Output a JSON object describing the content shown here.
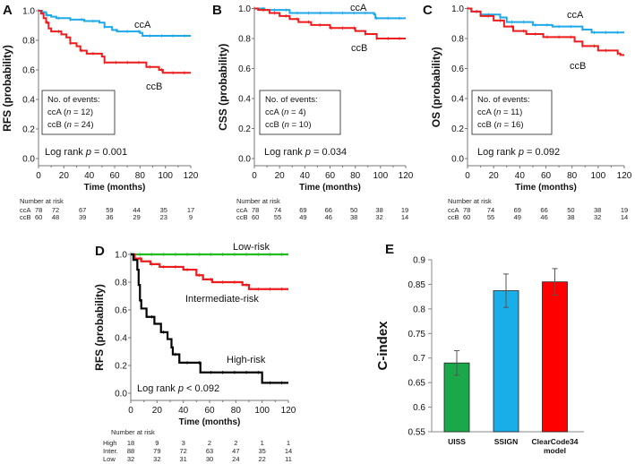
{
  "colors": {
    "ccA": "#1fa9ea",
    "ccB": "#ee1c1c",
    "low": "#22bb22",
    "inter": "#ee1c1c",
    "high": "#000000",
    "bar_uiss": "#1aa84a",
    "bar_ssign": "#19aee8",
    "bar_clearcode": "#ff0000",
    "errorbar": "#555555"
  },
  "chart_data": [
    {
      "id": "A",
      "type": "line",
      "step": true,
      "panel_label": "A",
      "xlabel": "Time (months)",
      "ylabel": "RFS (probability)",
      "xlim": [
        0,
        120
      ],
      "ylim": [
        0,
        1
      ],
      "xticks": [
        "0",
        "20",
        "40",
        "60",
        "80",
        "100",
        "120"
      ],
      "yticks": [
        "0.0",
        "0.2",
        "0.4",
        "0.6",
        "0.8",
        "1.0"
      ],
      "series": [
        {
          "name": "ccA",
          "color": "#1fa9ea",
          "points": [
            [
              0,
              1
            ],
            [
              3,
              0.99
            ],
            [
              6,
              0.97
            ],
            [
              10,
              0.96
            ],
            [
              14,
              0.95
            ],
            [
              25,
              0.94
            ],
            [
              36,
              0.93
            ],
            [
              48,
              0.92
            ],
            [
              52,
              0.89
            ],
            [
              58,
              0.87
            ],
            [
              62,
              0.86
            ],
            [
              80,
              0.85
            ],
            [
              82,
              0.83
            ],
            [
              120,
              0.83
            ]
          ]
        },
        {
          "name": "ccB",
          "color": "#ee1c1c",
          "points": [
            [
              0,
              1
            ],
            [
              2,
              0.98
            ],
            [
              4,
              0.95
            ],
            [
              6,
              0.92
            ],
            [
              8,
              0.88
            ],
            [
              10,
              0.86
            ],
            [
              18,
              0.84
            ],
            [
              22,
              0.82
            ],
            [
              25,
              0.78
            ],
            [
              30,
              0.76
            ],
            [
              33,
              0.73
            ],
            [
              38,
              0.71
            ],
            [
              50,
              0.69
            ],
            [
              52,
              0.65
            ],
            [
              80,
              0.65
            ],
            [
              85,
              0.62
            ],
            [
              95,
              0.6
            ],
            [
              98,
              0.58
            ],
            [
              120,
              0.58
            ]
          ]
        }
      ],
      "legend_title": "No. of events:",
      "legend_lines": [
        {
          "group": "ccA (",
          "n": "n",
          "rest": " = 12)"
        },
        {
          "group": "ccB (",
          "n": "n",
          "rest": " = 24)"
        }
      ],
      "logrank": {
        "prefix": "Log rank ",
        "p": "p",
        "rest": " = 0.001"
      },
      "risk_title": "Number at risk",
      "risk_rows": [
        {
          "label": "ccA",
          "values": [
            "78",
            "72",
            "67",
            "59",
            "44",
            "35",
            "17"
          ]
        },
        {
          "label": "ccB",
          "values": [
            "60",
            "48",
            "39",
            "36",
            "29",
            "23",
            "9"
          ]
        }
      ]
    },
    {
      "id": "B",
      "type": "line",
      "step": true,
      "panel_label": "B",
      "xlabel": "Time (months)",
      "ylabel": "CSS (probability)",
      "xlim": [
        0,
        120
      ],
      "ylim": [
        0,
        1
      ],
      "xticks": [
        "0",
        "20",
        "40",
        "60",
        "80",
        "100",
        "120"
      ],
      "yticks": [
        "0.0",
        "0.2",
        "0.4",
        "0.6",
        "0.8",
        "1.0"
      ],
      "series": [
        {
          "name": "ccA",
          "color": "#1fa9ea",
          "points": [
            [
              0,
              1
            ],
            [
              8,
              0.99
            ],
            [
              28,
              0.97
            ],
            [
              95,
              0.96
            ],
            [
              96,
              0.935
            ],
            [
              120,
              0.935
            ]
          ]
        },
        {
          "name": "ccB",
          "color": "#ee1c1c",
          "points": [
            [
              0,
              1
            ],
            [
              3,
              0.99
            ],
            [
              12,
              0.97
            ],
            [
              20,
              0.95
            ],
            [
              28,
              0.93
            ],
            [
              35,
              0.91
            ],
            [
              45,
              0.89
            ],
            [
              60,
              0.87
            ],
            [
              80,
              0.85
            ],
            [
              88,
              0.83
            ],
            [
              97,
              0.8
            ],
            [
              120,
              0.8
            ]
          ]
        }
      ],
      "legend_title": "No. of events:",
      "legend_lines": [
        {
          "group": "ccA (",
          "n": "n",
          "rest": " = 4)"
        },
        {
          "group": "ccB (",
          "n": "n",
          "rest": " = 10)"
        }
      ],
      "logrank": {
        "prefix": "Log rank ",
        "p": "p",
        "rest": " = 0.034"
      },
      "risk_title": "Number at risk",
      "risk_rows": [
        {
          "label": "ccA",
          "values": [
            "78",
            "74",
            "69",
            "66",
            "50",
            "38",
            "19"
          ]
        },
        {
          "label": "ccB",
          "values": [
            "60",
            "55",
            "49",
            "46",
            "38",
            "32",
            "14"
          ]
        }
      ]
    },
    {
      "id": "C",
      "type": "line",
      "step": true,
      "panel_label": "C",
      "xlabel": "Time (months)",
      "ylabel": "OS (probability)",
      "xlim": [
        0,
        120
      ],
      "ylim": [
        0,
        1
      ],
      "xticks": [
        "0",
        "20",
        "40",
        "60",
        "80",
        "100",
        "120"
      ],
      "yticks": [
        "0.0",
        "0.2",
        "0.4",
        "0.6",
        "0.8",
        "1.0"
      ],
      "series": [
        {
          "name": "ccA",
          "color": "#1fa9ea",
          "points": [
            [
              0,
              1
            ],
            [
              3,
              0.98
            ],
            [
              10,
              0.96
            ],
            [
              25,
              0.94
            ],
            [
              30,
              0.91
            ],
            [
              50,
              0.89
            ],
            [
              65,
              0.88
            ],
            [
              88,
              0.86
            ],
            [
              95,
              0.84
            ],
            [
              120,
              0.84
            ]
          ]
        },
        {
          "name": "ccB",
          "color": "#ee1c1c",
          "points": [
            [
              0,
              1
            ],
            [
              3,
              0.98
            ],
            [
              10,
              0.95
            ],
            [
              20,
              0.92
            ],
            [
              28,
              0.88
            ],
            [
              35,
              0.85
            ],
            [
              45,
              0.83
            ],
            [
              58,
              0.81
            ],
            [
              82,
              0.78
            ],
            [
              88,
              0.75
            ],
            [
              100,
              0.72
            ],
            [
              115,
              0.7
            ],
            [
              117,
              0.69
            ],
            [
              120,
              0.69
            ]
          ]
        }
      ],
      "legend_title": "No. of events:",
      "legend_lines": [
        {
          "group": "ccA (",
          "n": "n",
          "rest": " = 11)"
        },
        {
          "group": "ccB (",
          "n": "n",
          "rest": " = 16)"
        }
      ],
      "logrank": {
        "prefix": "Log rank ",
        "p": "p",
        "rest": " = 0.092"
      },
      "risk_title": "Number at risk",
      "risk_rows": [
        {
          "label": "ccA",
          "values": [
            "78",
            "74",
            "69",
            "66",
            "50",
            "38",
            "19"
          ]
        },
        {
          "label": "ccB",
          "values": [
            "60",
            "55",
            "49",
            "46",
            "38",
            "32",
            "14"
          ]
        }
      ]
    },
    {
      "id": "D",
      "type": "line",
      "step": true,
      "panel_label": "D",
      "xlabel": "Time (months)",
      "ylabel": "RFS (probability)",
      "xlim": [
        0,
        120
      ],
      "ylim": [
        0,
        1
      ],
      "xticks": [
        "0",
        "20",
        "40",
        "60",
        "80",
        "100",
        "120"
      ],
      "yticks": [
        "0.0",
        "0.2",
        "0.4",
        "0.6",
        "0.8",
        "1.0"
      ],
      "series": [
        {
          "name": "Low-risk",
          "color": "#22bb22",
          "points": [
            [
              0,
              1
            ],
            [
              120,
              1
            ]
          ]
        },
        {
          "name": "Intermediate-risk",
          "color": "#ee1c1c",
          "points": [
            [
              0,
              1
            ],
            [
              3,
              0.97
            ],
            [
              8,
              0.95
            ],
            [
              15,
              0.93
            ],
            [
              22,
              0.91
            ],
            [
              40,
              0.89
            ],
            [
              50,
              0.85
            ],
            [
              55,
              0.82
            ],
            [
              62,
              0.8
            ],
            [
              85,
              0.78
            ],
            [
              90,
              0.75
            ],
            [
              120,
              0.75
            ]
          ]
        },
        {
          "name": "High-risk",
          "color": "#000000",
          "points": [
            [
              0,
              1
            ],
            [
              2,
              0.96
            ],
            [
              5,
              0.89
            ],
            [
              6,
              0.78
            ],
            [
              7,
              0.67
            ],
            [
              8,
              0.61
            ],
            [
              12,
              0.55
            ],
            [
              18,
              0.5
            ],
            [
              23,
              0.44
            ],
            [
              28,
              0.39
            ],
            [
              31,
              0.33
            ],
            [
              32,
              0.28
            ],
            [
              37,
              0.22
            ],
            [
              53,
              0.15
            ],
            [
              100,
              0.075
            ],
            [
              120,
              0.075
            ]
          ]
        }
      ],
      "logrank": {
        "prefix": "Log rank ",
        "p": "p",
        "rest": " < 0.092"
      },
      "risk_title": "Number at risk",
      "risk_rows": [
        {
          "label": "High",
          "values": [
            "18",
            "9",
            "3",
            "2",
            "2",
            "1",
            "1"
          ]
        },
        {
          "label": "Inter.",
          "values": [
            "88",
            "79",
            "72",
            "63",
            "47",
            "35",
            "14"
          ]
        },
        {
          "label": "Low",
          "values": [
            "32",
            "32",
            "31",
            "30",
            "24",
            "22",
            "11"
          ]
        }
      ]
    },
    {
      "id": "E",
      "type": "bar",
      "panel_label": "E",
      "ylabel": "C-index",
      "xlabel": "",
      "ylim": [
        0.55,
        0.9
      ],
      "yticks": [
        "0.55",
        "0.6",
        "0.65",
        "0.7",
        "0.75",
        "0.8",
        "0.85",
        "0.9"
      ],
      "categories": [
        [
          "UISS"
        ],
        [
          "SSIGN"
        ],
        [
          "ClearCode34",
          "model"
        ]
      ],
      "values": [
        0.69,
        0.837,
        0.855
      ],
      "error_low": [
        0.665,
        0.803,
        0.828
      ],
      "error_high": [
        0.715,
        0.871,
        0.882
      ],
      "bar_colors": [
        "#1aa84a",
        "#19aee8",
        "#ff0000"
      ]
    }
  ]
}
